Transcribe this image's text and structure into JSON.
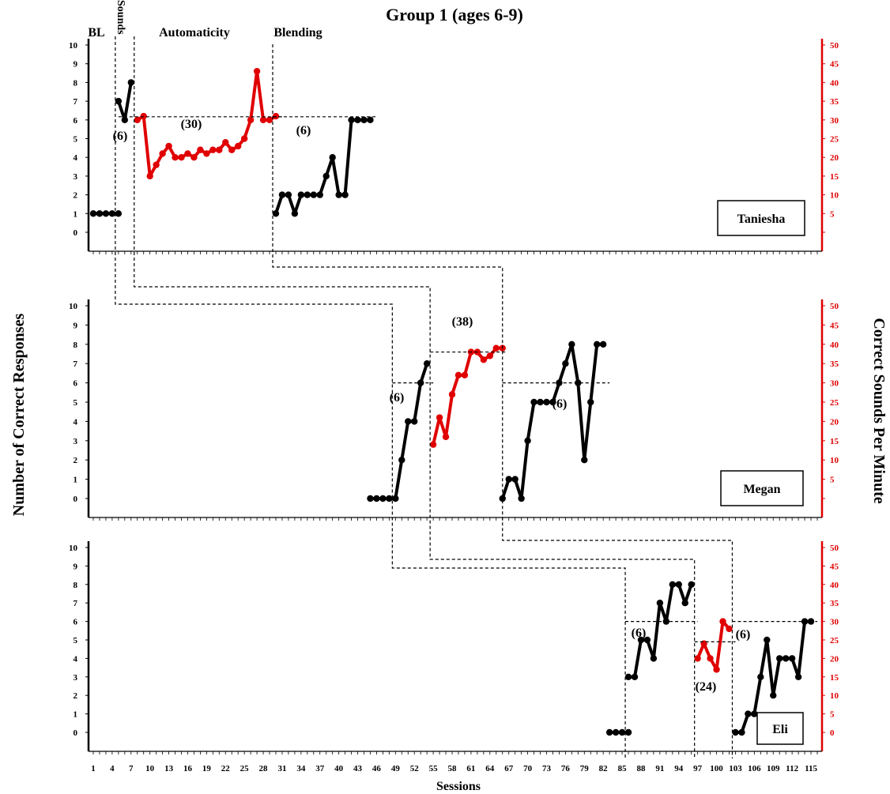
{
  "chart_data": {
    "type": "line",
    "title": "Group 1 (ages 6-9)",
    "xlabel": "Sessions",
    "ylabel_left": "Number of Correct Responses",
    "ylabel_right": "Correct Sounds Per Minute",
    "xlim": [
      1,
      116
    ],
    "ylim_left": [
      0,
      10
    ],
    "ylim_right": [
      0,
      50
    ],
    "x_tick_labels": [
      "1",
      "4",
      "7",
      "10",
      "13",
      "16",
      "19",
      "22",
      "25",
      "28",
      "31",
      "34",
      "37",
      "40",
      "43",
      "46",
      "49",
      "52",
      "55",
      "58",
      "61",
      "64",
      "67",
      "70",
      "73",
      "76",
      "79",
      "82",
      "85",
      "88",
      "91",
      "94",
      "97",
      "100",
      "103",
      "106",
      "109",
      "112",
      "115"
    ],
    "y_tick_labels_left": [
      "0",
      "1",
      "2",
      "3",
      "4",
      "5",
      "6",
      "7",
      "8",
      "9",
      "10"
    ],
    "y_tick_labels_right": [
      "5",
      "10",
      "15",
      "20",
      "25",
      "30",
      "35",
      "40",
      "45",
      "50"
    ],
    "y_tick_labels_right_lower": [
      "0",
      "5",
      "10",
      "15",
      "20",
      "25",
      "30",
      "35",
      "40",
      "45",
      "50"
    ],
    "colors": {
      "count_series": "#000000",
      "rate_series": "#e00000",
      "right_axis": "#e00000"
    },
    "panels": [
      {
        "participant": "Taniesha",
        "phases": [
          "BL",
          "Sounds",
          "Automaticity",
          "Blending"
        ],
        "annotations": [
          "(6)",
          "(30)",
          "(6)"
        ],
        "series": [
          {
            "axis": "left",
            "color": "#000000",
            "points": [
              [
                1,
                1
              ],
              [
                2,
                1
              ],
              [
                3,
                1
              ],
              [
                4,
                1
              ],
              [
                5,
                1
              ]
            ]
          },
          {
            "axis": "left",
            "color": "#000000",
            "points": [
              [
                5,
                7
              ],
              [
                6,
                6
              ],
              [
                7,
                8
              ]
            ]
          },
          {
            "axis": "right",
            "color": "#e00000",
            "points": [
              [
                8,
                30
              ],
              [
                9,
                31
              ],
              [
                10,
                15
              ],
              [
                11,
                18
              ],
              [
                12,
                21
              ],
              [
                13,
                23
              ],
              [
                14,
                20
              ],
              [
                15,
                20
              ],
              [
                16,
                21
              ],
              [
                17,
                20
              ],
              [
                18,
                22
              ],
              [
                19,
                21
              ],
              [
                20,
                22
              ],
              [
                21,
                22
              ],
              [
                22,
                24
              ],
              [
                23,
                22
              ],
              [
                24,
                23
              ],
              [
                25,
                25
              ],
              [
                26,
                30
              ],
              [
                27,
                43
              ],
              [
                28,
                30
              ],
              [
                29,
                30
              ],
              [
                30,
                31
              ]
            ]
          },
          {
            "axis": "left",
            "color": "#000000",
            "points": [
              [
                30,
                1
              ],
              [
                31,
                2
              ],
              [
                32,
                2
              ],
              [
                33,
                1
              ],
              [
                34,
                2
              ],
              [
                35,
                2
              ],
              [
                36,
                2
              ],
              [
                37,
                2
              ],
              [
                38,
                3
              ],
              [
                39,
                4
              ],
              [
                40,
                2
              ],
              [
                41,
                2
              ],
              [
                42,
                6
              ],
              [
                43,
                6
              ],
              [
                44,
                6
              ],
              [
                45,
                6
              ]
            ]
          }
        ]
      },
      {
        "participant": "Megan",
        "annotations": [
          "(6)",
          "(38)",
          "(6)"
        ],
        "series": [
          {
            "axis": "left",
            "color": "#000000",
            "points": [
              [
                45,
                0
              ],
              [
                46,
                0
              ],
              [
                47,
                0
              ],
              [
                48,
                0
              ],
              [
                49,
                0
              ],
              [
                50,
                2
              ],
              [
                51,
                4
              ],
              [
                52,
                4
              ],
              [
                53,
                6
              ],
              [
                54,
                7
              ]
            ]
          },
          {
            "axis": "right",
            "color": "#e00000",
            "points": [
              [
                55,
                14
              ],
              [
                56,
                21
              ],
              [
                57,
                16
              ],
              [
                58,
                27
              ],
              [
                59,
                32
              ],
              [
                60,
                32
              ],
              [
                61,
                38
              ],
              [
                62,
                38
              ],
              [
                63,
                36
              ],
              [
                64,
                37
              ],
              [
                65,
                39
              ],
              [
                66,
                39
              ]
            ]
          },
          {
            "axis": "left",
            "color": "#000000",
            "points": [
              [
                66,
                0
              ],
              [
                67,
                1
              ],
              [
                68,
                1
              ],
              [
                69,
                0
              ],
              [
                70,
                3
              ],
              [
                71,
                5
              ],
              [
                72,
                5
              ],
              [
                73,
                5
              ],
              [
                74,
                5
              ],
              [
                75,
                6
              ],
              [
                76,
                7
              ],
              [
                77,
                8
              ],
              [
                78,
                6
              ],
              [
                79,
                2
              ],
              [
                80,
                5
              ],
              [
                81,
                8
              ],
              [
                82,
                8
              ]
            ]
          }
        ]
      },
      {
        "participant": "Eli",
        "annotations": [
          "(6)",
          "(24)",
          "(6)"
        ],
        "series": [
          {
            "axis": "left",
            "color": "#000000",
            "points": [
              [
                83,
                0
              ],
              [
                84,
                0
              ],
              [
                85,
                0
              ],
              [
                86,
                0
              ]
            ]
          },
          {
            "axis": "left",
            "color": "#000000",
            "points": [
              [
                86,
                3
              ],
              [
                87,
                3
              ],
              [
                88,
                5
              ],
              [
                89,
                5
              ],
              [
                90,
                4
              ],
              [
                91,
                7
              ],
              [
                92,
                6
              ],
              [
                93,
                8
              ],
              [
                94,
                8
              ],
              [
                95,
                7
              ],
              [
                96,
                8
              ]
            ]
          },
          {
            "axis": "right",
            "color": "#e00000",
            "points": [
              [
                97,
                20
              ],
              [
                98,
                24
              ],
              [
                99,
                20
              ],
              [
                100,
                17
              ],
              [
                101,
                30
              ],
              [
                102,
                28
              ]
            ]
          },
          {
            "axis": "left",
            "color": "#000000",
            "points": [
              [
                103,
                0
              ],
              [
                104,
                0
              ],
              [
                105,
                1
              ],
              [
                106,
                1
              ],
              [
                107,
                3
              ],
              [
                108,
                5
              ],
              [
                109,
                2
              ],
              [
                110,
                4
              ],
              [
                111,
                4
              ],
              [
                112,
                4
              ],
              [
                113,
                3
              ],
              [
                114,
                6
              ],
              [
                115,
                6
              ]
            ]
          }
        ]
      }
    ]
  }
}
